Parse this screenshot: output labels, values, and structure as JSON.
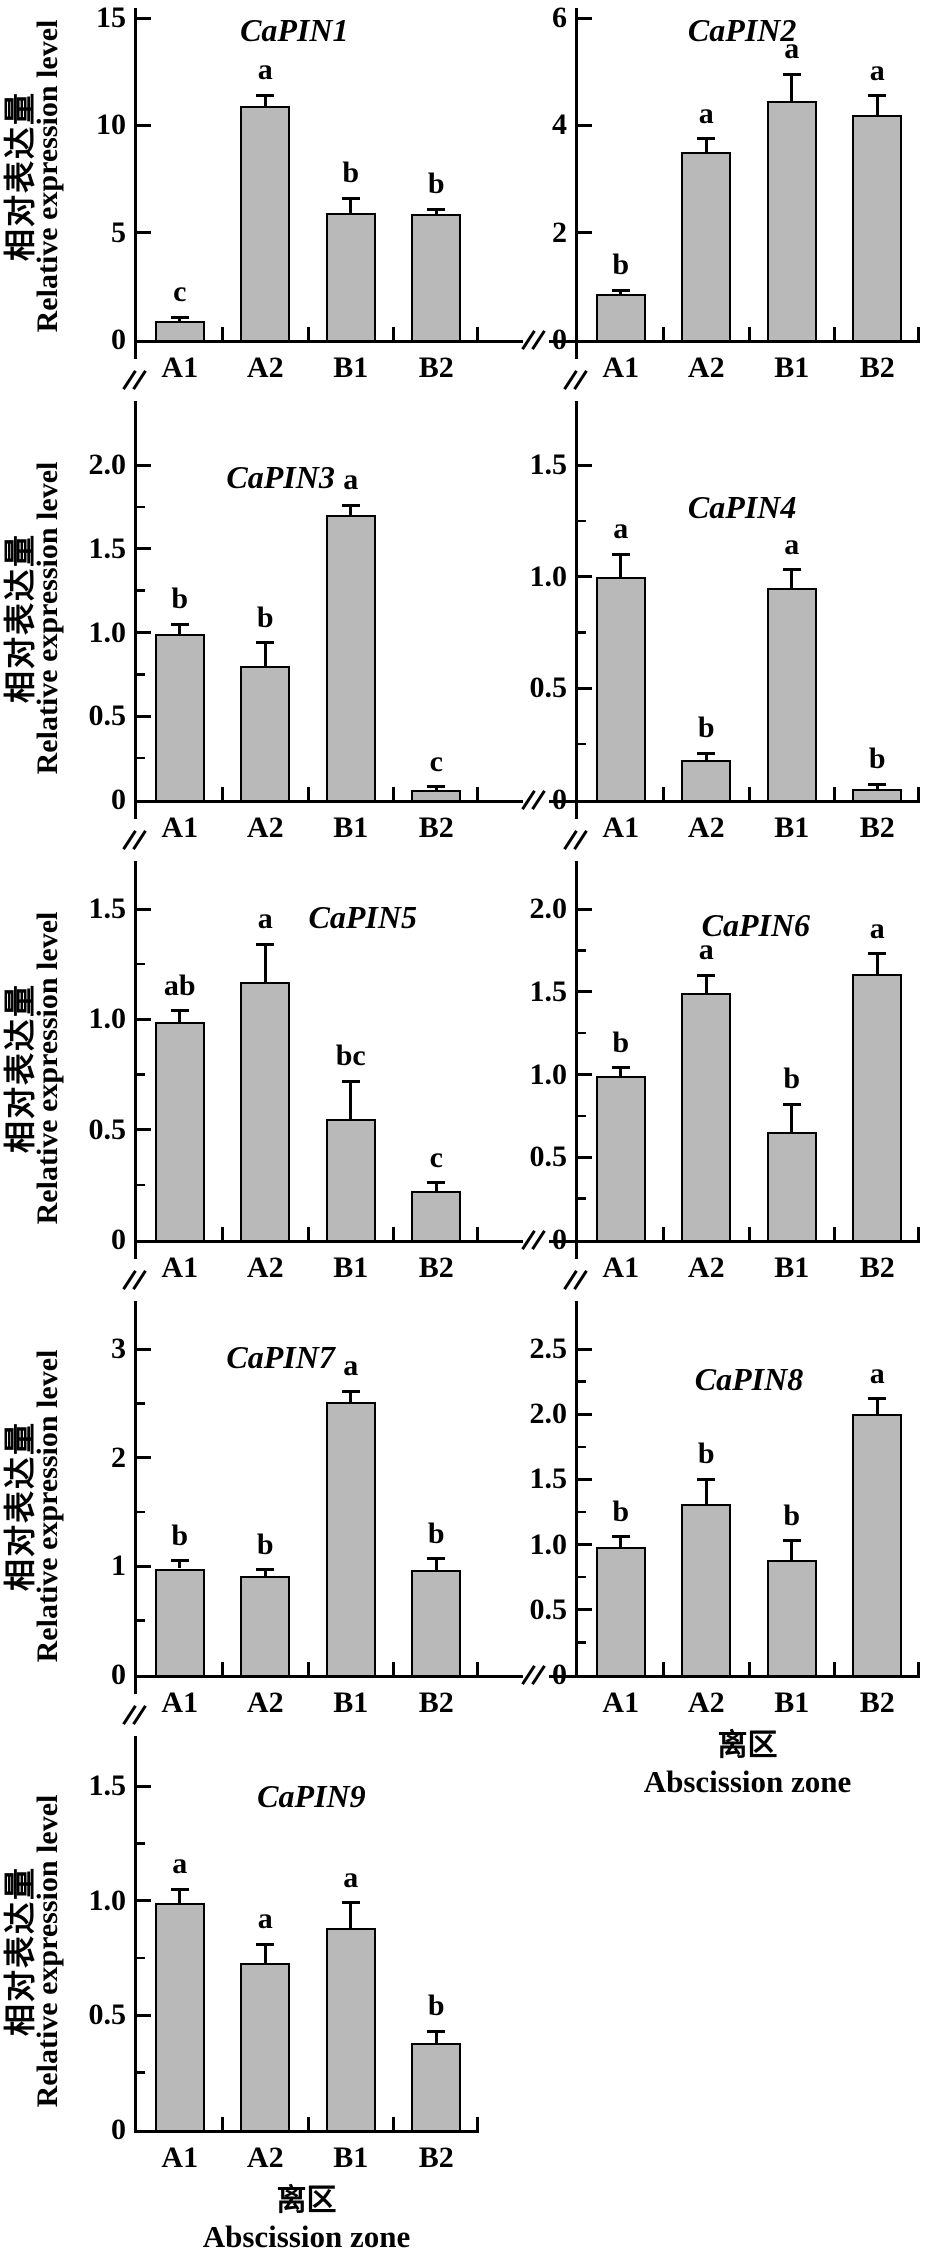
{
  "figure": {
    "y_axis_label_zh": "相对表达量",
    "y_axis_label_en": "Relative expression level",
    "x_axis_label_zh": "离区",
    "x_axis_label_en": "Abscission zone",
    "categories": [
      "A1",
      "A2",
      "B1",
      "B2"
    ],
    "bar_fill_color": "#b9b9b9",
    "axis_color": "#000000"
  },
  "chart_data": [
    {
      "type": "bar",
      "title": "CaPIN1",
      "ylim": [
        0,
        15
      ],
      "yticks": [
        0,
        5,
        10,
        15
      ],
      "ytick_labels": [
        "0",
        "5",
        "10",
        "15"
      ],
      "yminor": [],
      "categories": [
        "A1",
        "A2",
        "B1",
        "B2"
      ],
      "values": [
        0.9,
        10.9,
        5.9,
        5.85
      ],
      "errors": [
        0.15,
        0.5,
        0.7,
        0.25
      ],
      "letters": [
        "c",
        "a",
        "b",
        "b"
      ]
    },
    {
      "type": "bar",
      "title": "CaPIN2",
      "ylim": [
        0,
        6
      ],
      "yticks": [
        0,
        2,
        4,
        6
      ],
      "ytick_labels": [
        "0",
        "2",
        "4",
        "6"
      ],
      "yminor": [],
      "categories": [
        "A1",
        "A2",
        "B1",
        "B2"
      ],
      "values": [
        0.85,
        3.5,
        4.45,
        4.2
      ],
      "errors": [
        0.08,
        0.25,
        0.5,
        0.35
      ],
      "letters": [
        "b",
        "a",
        "a",
        "a"
      ]
    },
    {
      "type": "bar",
      "title": "CaPIN3",
      "ylim": [
        0,
        2.0
      ],
      "yticks": [
        0,
        0.5,
        1.0,
        1.5,
        2.0
      ],
      "ytick_labels": [
        "0",
        "0.5",
        "1.0",
        "1.5",
        "2.0"
      ],
      "yminor": [
        0.25,
        0.75,
        1.25,
        1.75
      ],
      "categories": [
        "A1",
        "A2",
        "B1",
        "B2"
      ],
      "values": [
        0.99,
        0.8,
        1.7,
        0.06
      ],
      "errors": [
        0.06,
        0.14,
        0.06,
        0.02
      ],
      "letters": [
        "b",
        "b",
        "a",
        "c"
      ]
    },
    {
      "type": "bar",
      "title": "CaPIN4",
      "ylim": [
        0,
        1.5
      ],
      "yticks": [
        0,
        0.5,
        1.0,
        1.5
      ],
      "ytick_labels": [
        "0",
        "0.5",
        "1.0",
        "1.5"
      ],
      "yminor": [
        0.25,
        0.75,
        1.25
      ],
      "categories": [
        "A1",
        "A2",
        "B1",
        "B2"
      ],
      "values": [
        1.0,
        0.18,
        0.95,
        0.05
      ],
      "errors": [
        0.1,
        0.03,
        0.08,
        0.02
      ],
      "letters": [
        "a",
        "b",
        "a",
        "b"
      ]
    },
    {
      "type": "bar",
      "title": "CaPIN5",
      "ylim": [
        0,
        1.5
      ],
      "yticks": [
        0,
        0.5,
        1.0,
        1.5
      ],
      "ytick_labels": [
        "0",
        "0.5",
        "1.0",
        "1.5"
      ],
      "yminor": [
        0.25,
        0.75,
        1.25
      ],
      "categories": [
        "A1",
        "A2",
        "B1",
        "B2"
      ],
      "values": [
        0.99,
        1.17,
        0.55,
        0.22
      ],
      "errors": [
        0.05,
        0.17,
        0.17,
        0.04
      ],
      "letters": [
        "ab",
        "a",
        "bc",
        "c"
      ]
    },
    {
      "type": "bar",
      "title": "CaPIN6",
      "ylim": [
        0,
        2.0
      ],
      "yticks": [
        0,
        0.5,
        1.0,
        1.5,
        2.0
      ],
      "ytick_labels": [
        "0",
        "0.5",
        "1.0",
        "1.5",
        "2.0"
      ],
      "yminor": [
        0.25,
        0.75,
        1.25,
        1.75
      ],
      "categories": [
        "A1",
        "A2",
        "B1",
        "B2"
      ],
      "values": [
        0.99,
        1.49,
        0.65,
        1.61
      ],
      "errors": [
        0.05,
        0.11,
        0.17,
        0.12
      ],
      "letters": [
        "b",
        "a",
        "b",
        "a"
      ]
    },
    {
      "type": "bar",
      "title": "CaPIN7",
      "ylim": [
        0,
        3
      ],
      "yticks": [
        0,
        1,
        2,
        3
      ],
      "ytick_labels": [
        "0",
        "1",
        "2",
        "3"
      ],
      "yminor": [
        0.5,
        1.5,
        2.5
      ],
      "categories": [
        "A1",
        "A2",
        "B1",
        "B2"
      ],
      "values": [
        0.98,
        0.91,
        2.51,
        0.97
      ],
      "errors": [
        0.07,
        0.06,
        0.1,
        0.1
      ],
      "letters": [
        "b",
        "b",
        "a",
        "b"
      ]
    },
    {
      "type": "bar",
      "title": "CaPIN8",
      "ylim": [
        0,
        2.5
      ],
      "yticks": [
        0,
        0.5,
        1.0,
        1.5,
        2.0,
        2.5
      ],
      "ytick_labels": [
        "0",
        "0.5",
        "1.0",
        "1.5",
        "2.0",
        "2.5"
      ],
      "yminor": [
        0.25,
        0.75,
        1.25,
        1.75,
        2.25
      ],
      "categories": [
        "A1",
        "A2",
        "B1",
        "B2"
      ],
      "values": [
        0.98,
        1.31,
        0.88,
        2.0
      ],
      "errors": [
        0.08,
        0.19,
        0.15,
        0.12
      ],
      "letters": [
        "b",
        "b",
        "b",
        "a"
      ]
    },
    {
      "type": "bar",
      "title": "CaPIN9",
      "ylim": [
        0,
        1.5
      ],
      "yticks": [
        0,
        0.5,
        1.0,
        1.5
      ],
      "ytick_labels": [
        "0",
        "0.5",
        "1.0",
        "1.5"
      ],
      "yminor": [
        0.25,
        0.75,
        1.25
      ],
      "categories": [
        "A1",
        "A2",
        "B1",
        "B2"
      ],
      "values": [
        0.99,
        0.73,
        0.88,
        0.38
      ],
      "errors": [
        0.06,
        0.08,
        0.11,
        0.05
      ],
      "letters": [
        "a",
        "a",
        "a",
        "b"
      ]
    }
  ]
}
